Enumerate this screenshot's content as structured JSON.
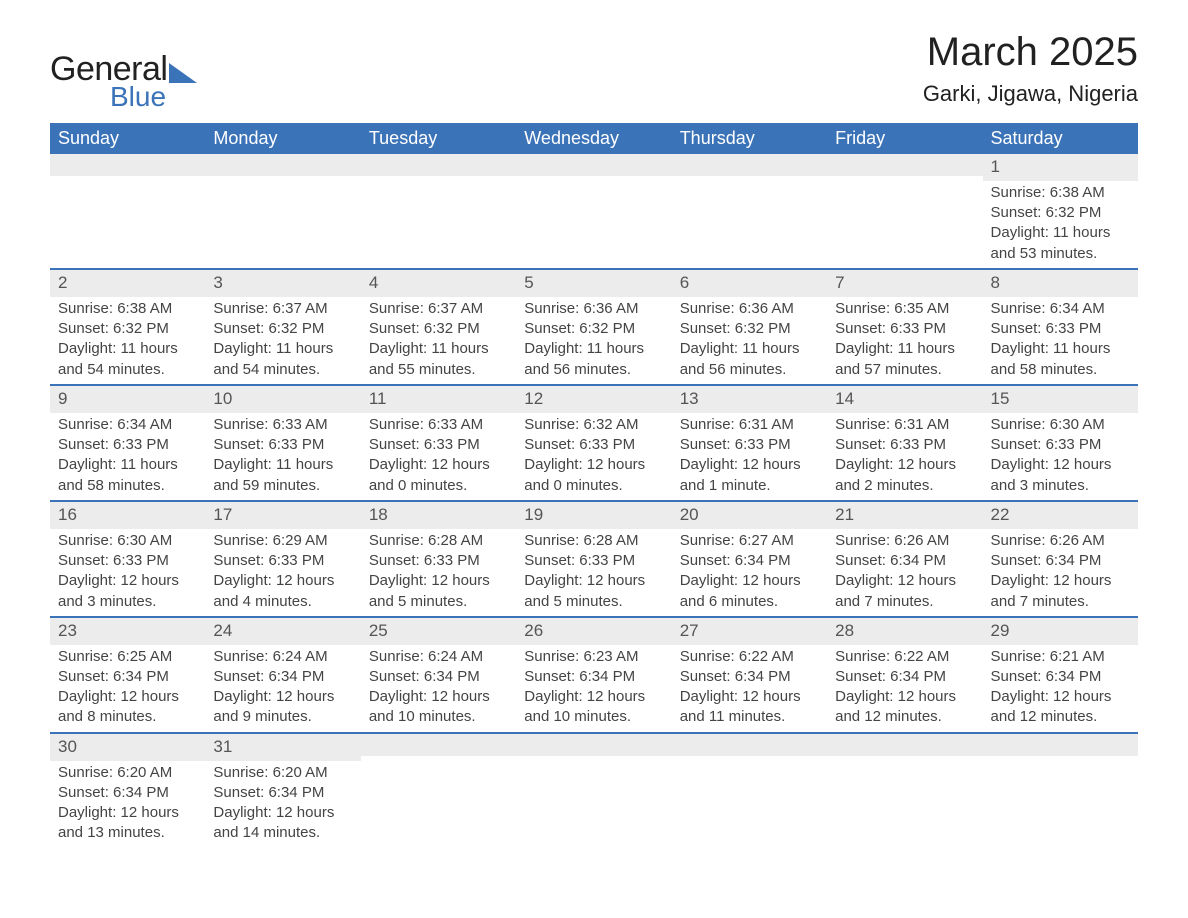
{
  "brand": {
    "general": "General",
    "blue": "Blue",
    "accent_color": "#3b73b9"
  },
  "header": {
    "month_title": "March 2025",
    "location": "Garki, Jigawa, Nigeria"
  },
  "calendar": {
    "header_bg": "#3b73b9",
    "header_fg": "#ffffff",
    "row_divider_color": "#3b73b9",
    "daynum_bg": "#ececec",
    "day_labels": [
      "Sunday",
      "Monday",
      "Tuesday",
      "Wednesday",
      "Thursday",
      "Friday",
      "Saturday"
    ],
    "weeks": [
      [
        {
          "day": "",
          "lines": [
            "",
            "",
            "",
            ""
          ]
        },
        {
          "day": "",
          "lines": [
            "",
            "",
            "",
            ""
          ]
        },
        {
          "day": "",
          "lines": [
            "",
            "",
            "",
            ""
          ]
        },
        {
          "day": "",
          "lines": [
            "",
            "",
            "",
            ""
          ]
        },
        {
          "day": "",
          "lines": [
            "",
            "",
            "",
            ""
          ]
        },
        {
          "day": "",
          "lines": [
            "",
            "",
            "",
            ""
          ]
        },
        {
          "day": "1",
          "lines": [
            "Sunrise: 6:38 AM",
            "Sunset: 6:32 PM",
            "Daylight: 11 hours",
            "and 53 minutes."
          ]
        }
      ],
      [
        {
          "day": "2",
          "lines": [
            "Sunrise: 6:38 AM",
            "Sunset: 6:32 PM",
            "Daylight: 11 hours",
            "and 54 minutes."
          ]
        },
        {
          "day": "3",
          "lines": [
            "Sunrise: 6:37 AM",
            "Sunset: 6:32 PM",
            "Daylight: 11 hours",
            "and 54 minutes."
          ]
        },
        {
          "day": "4",
          "lines": [
            "Sunrise: 6:37 AM",
            "Sunset: 6:32 PM",
            "Daylight: 11 hours",
            "and 55 minutes."
          ]
        },
        {
          "day": "5",
          "lines": [
            "Sunrise: 6:36 AM",
            "Sunset: 6:32 PM",
            "Daylight: 11 hours",
            "and 56 minutes."
          ]
        },
        {
          "day": "6",
          "lines": [
            "Sunrise: 6:36 AM",
            "Sunset: 6:32 PM",
            "Daylight: 11 hours",
            "and 56 minutes."
          ]
        },
        {
          "day": "7",
          "lines": [
            "Sunrise: 6:35 AM",
            "Sunset: 6:33 PM",
            "Daylight: 11 hours",
            "and 57 minutes."
          ]
        },
        {
          "day": "8",
          "lines": [
            "Sunrise: 6:34 AM",
            "Sunset: 6:33 PM",
            "Daylight: 11 hours",
            "and 58 minutes."
          ]
        }
      ],
      [
        {
          "day": "9",
          "lines": [
            "Sunrise: 6:34 AM",
            "Sunset: 6:33 PM",
            "Daylight: 11 hours",
            "and 58 minutes."
          ]
        },
        {
          "day": "10",
          "lines": [
            "Sunrise: 6:33 AM",
            "Sunset: 6:33 PM",
            "Daylight: 11 hours",
            "and 59 minutes."
          ]
        },
        {
          "day": "11",
          "lines": [
            "Sunrise: 6:33 AM",
            "Sunset: 6:33 PM",
            "Daylight: 12 hours",
            "and 0 minutes."
          ]
        },
        {
          "day": "12",
          "lines": [
            "Sunrise: 6:32 AM",
            "Sunset: 6:33 PM",
            "Daylight: 12 hours",
            "and 0 minutes."
          ]
        },
        {
          "day": "13",
          "lines": [
            "Sunrise: 6:31 AM",
            "Sunset: 6:33 PM",
            "Daylight: 12 hours",
            "and 1 minute."
          ]
        },
        {
          "day": "14",
          "lines": [
            "Sunrise: 6:31 AM",
            "Sunset: 6:33 PM",
            "Daylight: 12 hours",
            "and 2 minutes."
          ]
        },
        {
          "day": "15",
          "lines": [
            "Sunrise: 6:30 AM",
            "Sunset: 6:33 PM",
            "Daylight: 12 hours",
            "and 3 minutes."
          ]
        }
      ],
      [
        {
          "day": "16",
          "lines": [
            "Sunrise: 6:30 AM",
            "Sunset: 6:33 PM",
            "Daylight: 12 hours",
            "and 3 minutes."
          ]
        },
        {
          "day": "17",
          "lines": [
            "Sunrise: 6:29 AM",
            "Sunset: 6:33 PM",
            "Daylight: 12 hours",
            "and 4 minutes."
          ]
        },
        {
          "day": "18",
          "lines": [
            "Sunrise: 6:28 AM",
            "Sunset: 6:33 PM",
            "Daylight: 12 hours",
            "and 5 minutes."
          ]
        },
        {
          "day": "19",
          "lines": [
            "Sunrise: 6:28 AM",
            "Sunset: 6:33 PM",
            "Daylight: 12 hours",
            "and 5 minutes."
          ]
        },
        {
          "day": "20",
          "lines": [
            "Sunrise: 6:27 AM",
            "Sunset: 6:34 PM",
            "Daylight: 12 hours",
            "and 6 minutes."
          ]
        },
        {
          "day": "21",
          "lines": [
            "Sunrise: 6:26 AM",
            "Sunset: 6:34 PM",
            "Daylight: 12 hours",
            "and 7 minutes."
          ]
        },
        {
          "day": "22",
          "lines": [
            "Sunrise: 6:26 AM",
            "Sunset: 6:34 PM",
            "Daylight: 12 hours",
            "and 7 minutes."
          ]
        }
      ],
      [
        {
          "day": "23",
          "lines": [
            "Sunrise: 6:25 AM",
            "Sunset: 6:34 PM",
            "Daylight: 12 hours",
            "and 8 minutes."
          ]
        },
        {
          "day": "24",
          "lines": [
            "Sunrise: 6:24 AM",
            "Sunset: 6:34 PM",
            "Daylight: 12 hours",
            "and 9 minutes."
          ]
        },
        {
          "day": "25",
          "lines": [
            "Sunrise: 6:24 AM",
            "Sunset: 6:34 PM",
            "Daylight: 12 hours",
            "and 10 minutes."
          ]
        },
        {
          "day": "26",
          "lines": [
            "Sunrise: 6:23 AM",
            "Sunset: 6:34 PM",
            "Daylight: 12 hours",
            "and 10 minutes."
          ]
        },
        {
          "day": "27",
          "lines": [
            "Sunrise: 6:22 AM",
            "Sunset: 6:34 PM",
            "Daylight: 12 hours",
            "and 11 minutes."
          ]
        },
        {
          "day": "28",
          "lines": [
            "Sunrise: 6:22 AM",
            "Sunset: 6:34 PM",
            "Daylight: 12 hours",
            "and 12 minutes."
          ]
        },
        {
          "day": "29",
          "lines": [
            "Sunrise: 6:21 AM",
            "Sunset: 6:34 PM",
            "Daylight: 12 hours",
            "and 12 minutes."
          ]
        }
      ],
      [
        {
          "day": "30",
          "lines": [
            "Sunrise: 6:20 AM",
            "Sunset: 6:34 PM",
            "Daylight: 12 hours",
            "and 13 minutes."
          ]
        },
        {
          "day": "31",
          "lines": [
            "Sunrise: 6:20 AM",
            "Sunset: 6:34 PM",
            "Daylight: 12 hours",
            "and 14 minutes."
          ]
        },
        {
          "day": "",
          "lines": [
            "",
            "",
            "",
            ""
          ]
        },
        {
          "day": "",
          "lines": [
            "",
            "",
            "",
            ""
          ]
        },
        {
          "day": "",
          "lines": [
            "",
            "",
            "",
            ""
          ]
        },
        {
          "day": "",
          "lines": [
            "",
            "",
            "",
            ""
          ]
        },
        {
          "day": "",
          "lines": [
            "",
            "",
            "",
            ""
          ]
        }
      ]
    ]
  }
}
